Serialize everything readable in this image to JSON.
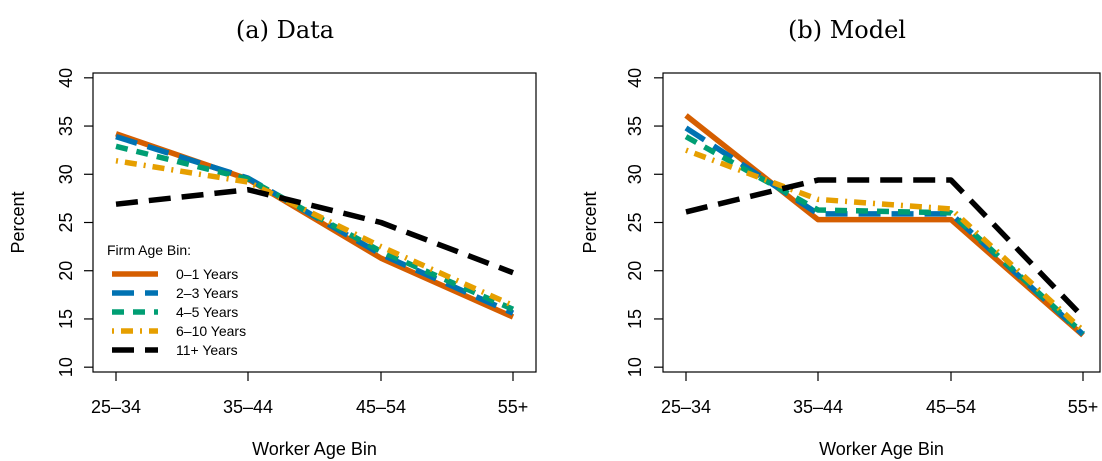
{
  "chart_data": [
    {
      "type": "line",
      "title": "(a) Data",
      "xlabel": "Worker Age Bin",
      "ylabel": "Percent",
      "categories": [
        "25–34",
        "35–44",
        "45–54",
        "55+"
      ],
      "yticks": [
        10,
        15,
        20,
        25,
        30,
        35,
        40
      ],
      "ylim": [
        9.5,
        40.5
      ],
      "grid": false,
      "legend": {
        "title": "Firm Age Bin:",
        "position": "bottom-left",
        "entries": [
          "0–1 Years",
          "2–3 Years",
          "4–5 Years",
          "6–10 Years",
          "11+ Years"
        ]
      },
      "series": [
        {
          "name": "0–1 Years",
          "values": [
            34.2,
            29.5,
            21.3,
            15.2
          ],
          "color": "#D55E00",
          "style": "solid"
        },
        {
          "name": "2–3 Years",
          "values": [
            33.9,
            29.6,
            21.7,
            15.6
          ],
          "color": "#0072B2",
          "style": "longdash"
        },
        {
          "name": "4–5 Years",
          "values": [
            32.9,
            29.5,
            22.0,
            16.0
          ],
          "color": "#009E73",
          "style": "dashed"
        },
        {
          "name": "6–10 Years",
          "values": [
            31.4,
            29.2,
            22.5,
            16.4
          ],
          "color": "#E69F00",
          "style": "dotdash"
        },
        {
          "name": "11+ Years",
          "values": [
            26.9,
            28.4,
            25.0,
            19.8
          ],
          "color": "#000000",
          "style": "longdash"
        }
      ]
    },
    {
      "type": "line",
      "title": "(b) Model",
      "xlabel": "Worker Age Bin",
      "ylabel": "Percent",
      "categories": [
        "25–34",
        "35–44",
        "45–54",
        "55+"
      ],
      "yticks": [
        10,
        15,
        20,
        25,
        30,
        35,
        40
      ],
      "ylim": [
        9.5,
        40.5
      ],
      "grid": false,
      "series": [
        {
          "name": "0–1 Years",
          "values": [
            36.1,
            25.3,
            25.3,
            13.3
          ],
          "color": "#D55E00",
          "style": "solid"
        },
        {
          "name": "2–3 Years",
          "values": [
            34.8,
            25.9,
            25.9,
            13.4
          ],
          "color": "#0072B2",
          "style": "longdash"
        },
        {
          "name": "4–5 Years",
          "values": [
            33.9,
            26.3,
            26.0,
            13.5
          ],
          "color": "#009E73",
          "style": "dashed"
        },
        {
          "name": "6–10 Years",
          "values": [
            32.5,
            27.4,
            26.4,
            13.8
          ],
          "color": "#E69F00",
          "style": "dotdash"
        },
        {
          "name": "11+ Years",
          "values": [
            26.1,
            29.4,
            29.4,
            15.2
          ],
          "color": "#000000",
          "style": "longdash"
        }
      ]
    }
  ]
}
